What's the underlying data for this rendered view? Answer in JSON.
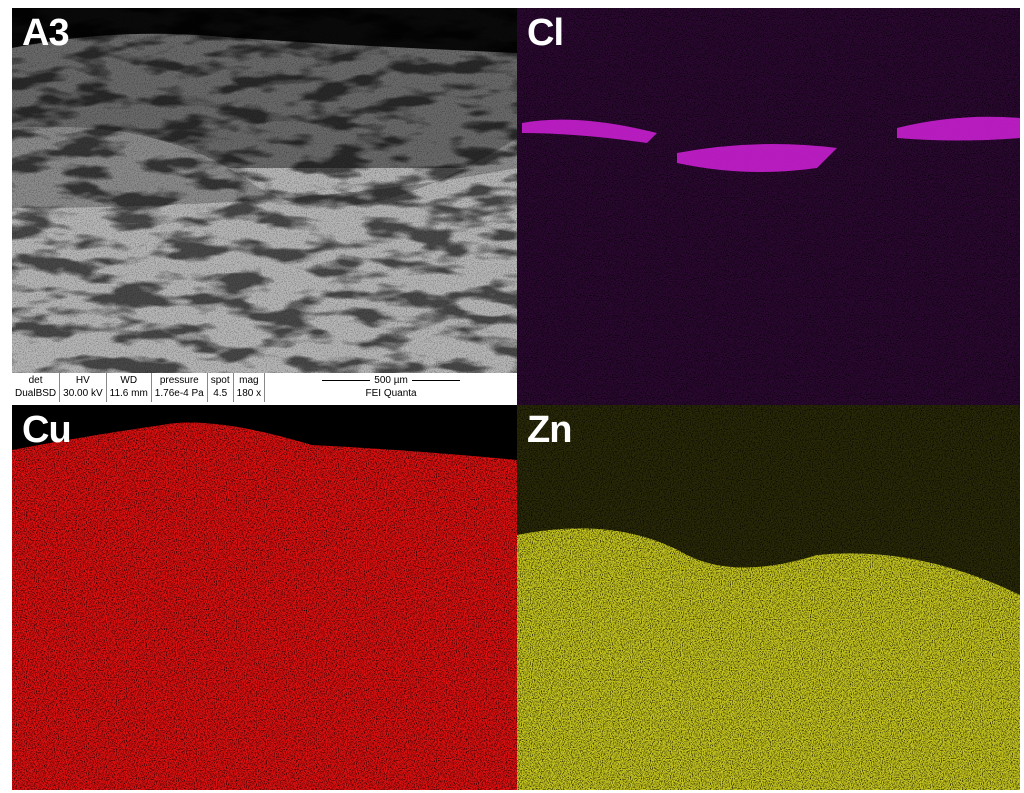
{
  "panels": [
    {
      "label": "A3"
    },
    {
      "label": "Cl"
    },
    {
      "label": "Cu"
    },
    {
      "label": "Zn"
    }
  ],
  "info_bar": {
    "columns": [
      {
        "header": "det",
        "value": "DualBSD"
      },
      {
        "header": "HV",
        "value": "30.00 kV"
      },
      {
        "header": "WD",
        "value": "11.6 mm"
      },
      {
        "header": "pressure",
        "value": "1.76e-4 Pa"
      },
      {
        "header": "spot",
        "value": "4.5"
      },
      {
        "header": "mag",
        "value": "180 x"
      }
    ],
    "scale_bar": "500 µm",
    "instrument": "FEI Quanta"
  }
}
